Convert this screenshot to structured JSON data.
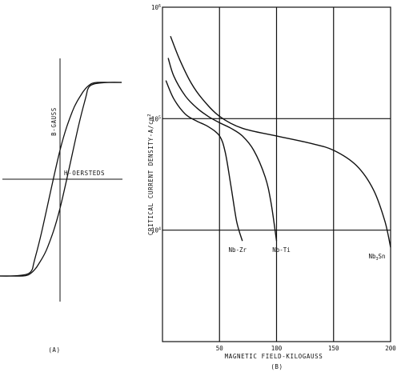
{
  "chart_data": [
    {
      "panel_label": "(A)",
      "type": "line",
      "title": "",
      "x_axis_label": "H-OERSTEDS",
      "y_axis_label": "B-GAUSS",
      "grid": false,
      "legend": "none",
      "x_range": [
        -1,
        1
      ],
      "y_range": [
        -1,
        1
      ],
      "series": [
        {
          "branch": "descending",
          "x": [
            1.0,
            0.8,
            0.6,
            0.5,
            0.45,
            0.42,
            0.3,
            0.0,
            -0.2,
            -0.35,
            -0.42,
            -0.47,
            -0.52,
            -0.6,
            -0.8,
            -1.0
          ],
          "y": [
            1.0,
            1.0,
            0.99,
            0.97,
            0.93,
            0.85,
            0.55,
            -0.3,
            -0.7,
            -0.88,
            -0.94,
            -0.97,
            -0.99,
            -1.0,
            -1.0,
            -1.0
          ]
        },
        {
          "branch": "ascending",
          "x": [
            -1.0,
            -0.8,
            -0.6,
            -0.5,
            -0.45,
            -0.42,
            -0.3,
            0.0,
            0.2,
            0.35,
            0.42,
            0.47,
            0.52,
            0.6,
            0.8,
            1.0
          ],
          "y": [
            -1.0,
            -1.0,
            -0.99,
            -0.97,
            -0.93,
            -0.85,
            -0.55,
            0.3,
            0.7,
            0.88,
            0.94,
            0.97,
            0.99,
            1.0,
            1.0,
            1.0
          ]
        }
      ]
    },
    {
      "panel_label": "(B)",
      "type": "line",
      "title": "",
      "xlabel": "MAGNETIC FIELD-KILOGAUSS",
      "ylabel": "CRITICAL CURRENT DENSITY-A/cm2",
      "ylabel_parts": {
        "main": "CRITICAL CURRENT DENSITY-A/cm",
        "sup": "2"
      },
      "x_ticks": [
        50,
        100,
        150,
        200
      ],
      "y_ticks": [
        {
          "value": 10000,
          "base": "10",
          "exp": "4"
        },
        {
          "value": 100000,
          "base": "10",
          "exp": "5"
        },
        {
          "value": 1000000,
          "base": "10",
          "exp": "6"
        }
      ],
      "xlim": [
        0,
        200
      ],
      "ylim": [
        1000,
        1000000
      ],
      "y_scale": "log",
      "grid": true,
      "legend": "labels at curve ends",
      "series": [
        {
          "name": "Nb-Zr",
          "label": {
            "main": "Nb-Zr",
            "sub": ""
          },
          "x": [
            3,
            10,
            20,
            30,
            40,
            50,
            55,
            60,
            65,
            70
          ],
          "y": [
            220000,
            150000,
            110000,
            95000,
            85000,
            70000,
            50000,
            25000,
            12000,
            8000
          ]
        },
        {
          "name": "Nb-Ti",
          "label": {
            "main": "Nb-Ti",
            "sub": ""
          },
          "x": [
            5,
            10,
            20,
            30,
            40,
            50,
            60,
            70,
            80,
            90,
            95,
            100
          ],
          "y": [
            350000,
            240000,
            160000,
            125000,
            105000,
            92000,
            82000,
            70000,
            52000,
            30000,
            18000,
            8000
          ]
        },
        {
          "name": "Nb3Sn",
          "label": {
            "main": "Nb",
            "sub": "3",
            "tail": "Sn"
          },
          "x": [
            7,
            15,
            25,
            35,
            50,
            70,
            100,
            130,
            150,
            170,
            185,
            195,
            200
          ],
          "y": [
            550000,
            340000,
            210000,
            150000,
            105000,
            82000,
            70000,
            60000,
            52000,
            38000,
            23000,
            12000,
            7000
          ]
        }
      ]
    }
  ]
}
